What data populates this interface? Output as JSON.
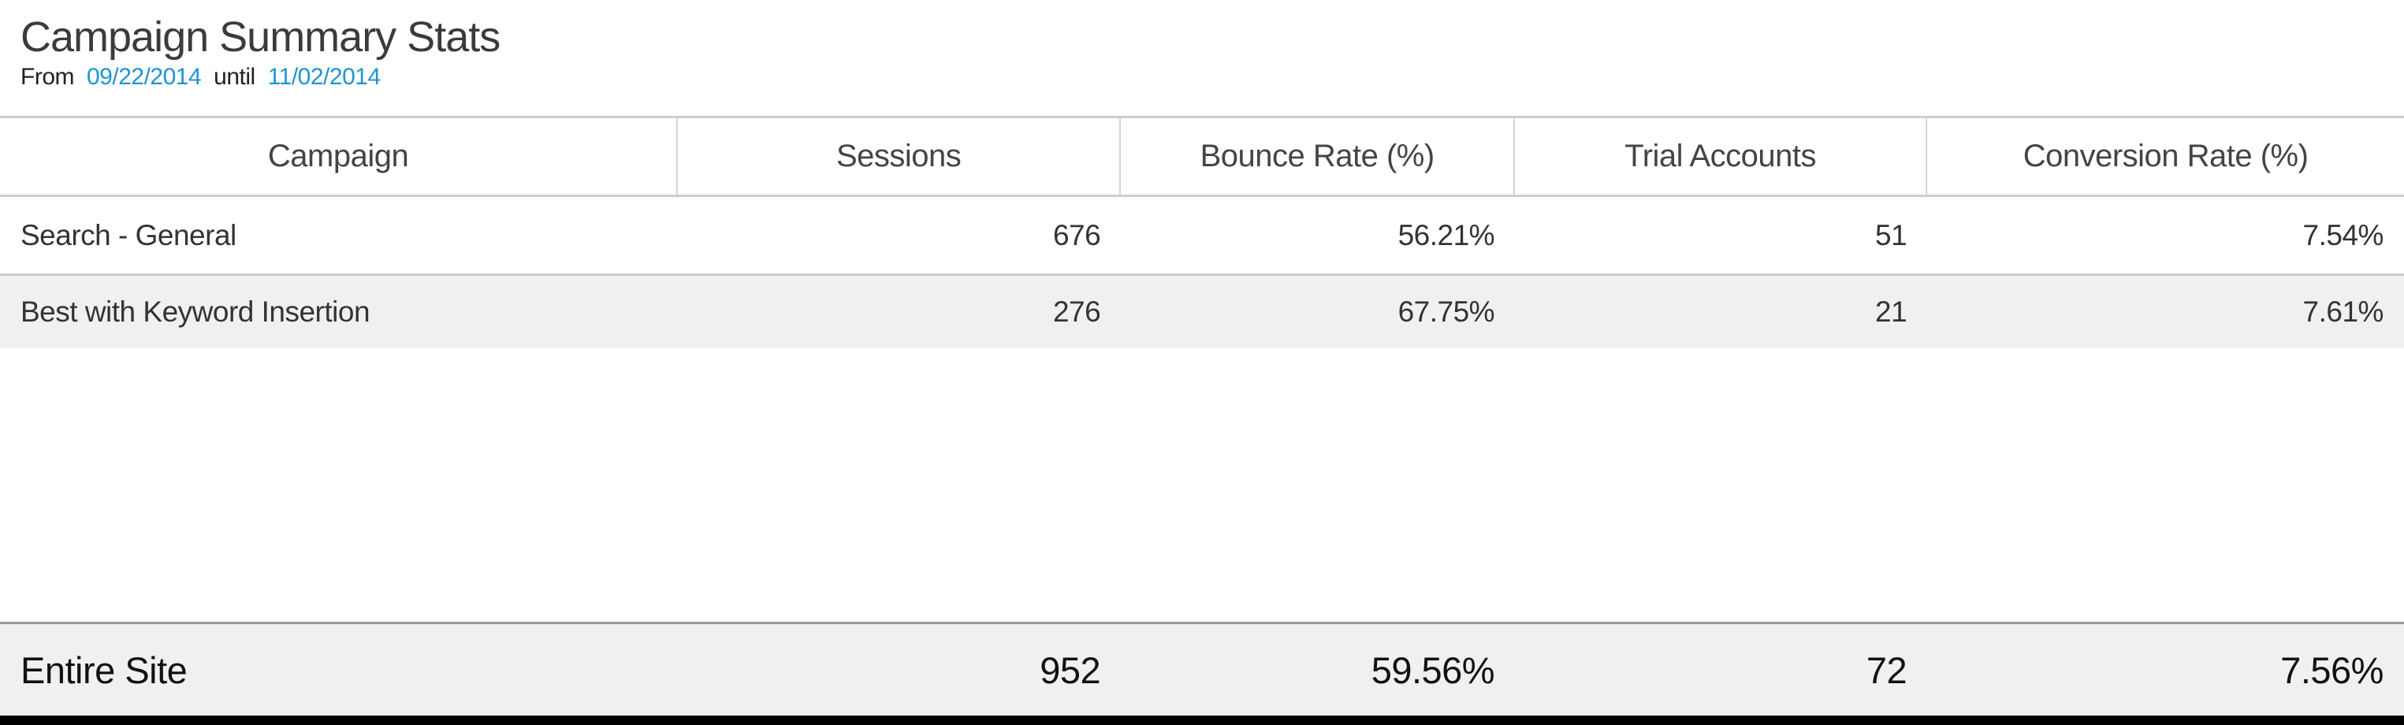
{
  "header": {
    "title": "Campaign Summary Stats",
    "date_range": {
      "from_label": "From",
      "start_date": "09/22/2014",
      "until_label": "until",
      "end_date": "11/02/2014"
    }
  },
  "table": {
    "columns": [
      {
        "label": "Campaign"
      },
      {
        "label": "Sessions"
      },
      {
        "label": "Bounce Rate (%)"
      },
      {
        "label": "Trial Accounts"
      },
      {
        "label": "Conversion Rate (%)"
      }
    ],
    "rows": [
      {
        "campaign": "Search - General",
        "sessions": "676",
        "bounce_rate": "56.21%",
        "trial_accounts": "51",
        "conversion_rate": "7.54%"
      },
      {
        "campaign": "Best with Keyword Insertion",
        "sessions": "276",
        "bounce_rate": "67.75%",
        "trial_accounts": "21",
        "conversion_rate": "7.61%"
      }
    ],
    "footer": {
      "campaign": "Entire Site",
      "sessions": "952",
      "bounce_rate": "59.56%",
      "trial_accounts": "72",
      "conversion_rate": "7.56%"
    }
  },
  "colors": {
    "accent_link": "#1e95d3",
    "title_text": "#3b3b3b",
    "body_text": "#333333",
    "header_text": "#444444",
    "row_alt_bg": "#f0f0f0",
    "row_divider": "#cccccc",
    "footer_top_border": "#999999",
    "footer_bg": "#f0f0f0",
    "bottom_bar": "#000000"
  }
}
